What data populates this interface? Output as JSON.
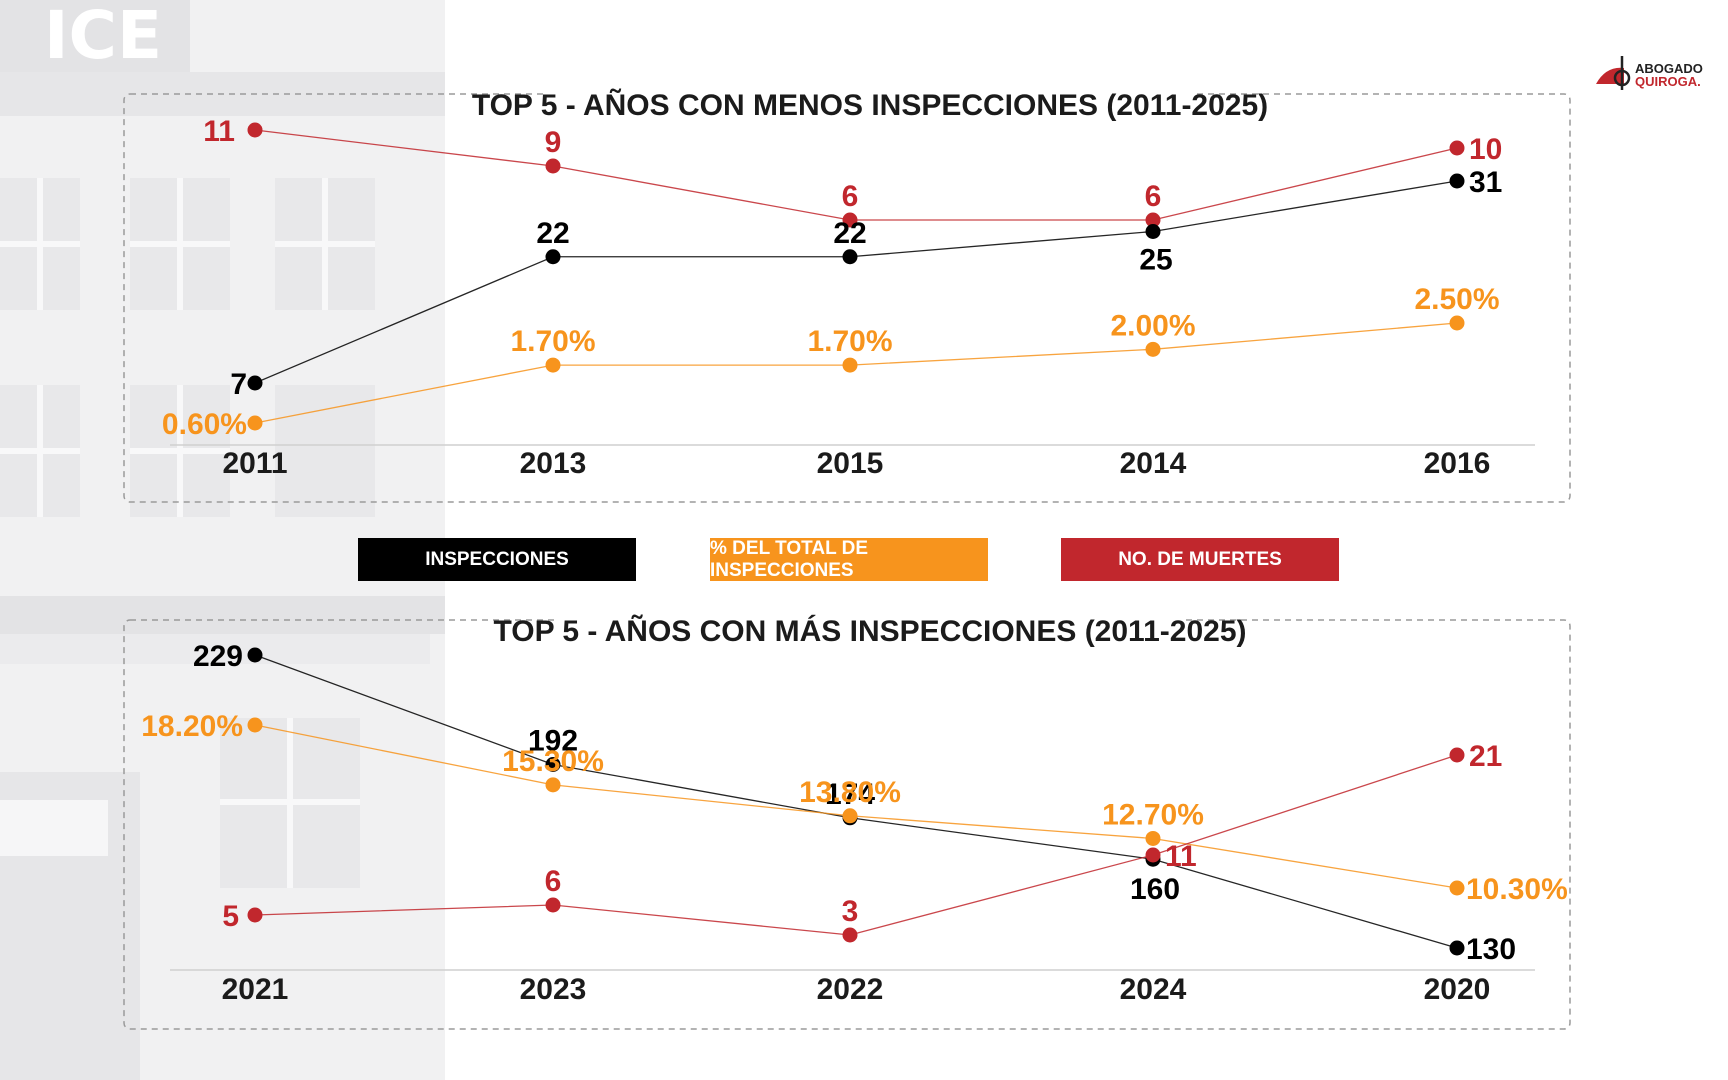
{
  "background": {
    "watermark_text": "ICE"
  },
  "logo": {
    "line1": "ABOGADO",
    "line2": "QUIROGA."
  },
  "legend": {
    "items": [
      {
        "label": "INSPECCIONES",
        "color": "#000000"
      },
      {
        "label": "% DEL TOTAL DE INSPECCIONES",
        "color": "#f7941d"
      },
      {
        "label": "NO. DE MUERTES",
        "color": "#c1272d"
      }
    ]
  },
  "colors": {
    "inspecciones": "#000000",
    "porcentaje": "#f7941d",
    "muertes": "#c1272d"
  },
  "chart_data": [
    {
      "type": "line",
      "title": "TOP 5 - AÑOS CON MENOS INSPECCIONES (2011-2025)",
      "categories": [
        "2011",
        "2013",
        "2015",
        "2014",
        "2016"
      ],
      "series": [
        {
          "name": "NO. DE MUERTES",
          "values": [
            11,
            9,
            6,
            6,
            10
          ],
          "labels": [
            "11",
            "9",
            "6",
            "6",
            "10"
          ]
        },
        {
          "name": "INSPECCIONES",
          "values": [
            7,
            22,
            22,
            25,
            31
          ],
          "labels": [
            "7",
            "22",
            "22",
            "25",
            "31"
          ]
        },
        {
          "name": "% DEL TOTAL DE INSPECCIONES",
          "values": [
            0.6,
            1.7,
            1.7,
            2.0,
            2.5
          ],
          "labels": [
            "0.60%",
            "1.70%",
            "1.70%",
            "2.00%",
            "2.50%"
          ]
        }
      ]
    },
    {
      "type": "line",
      "title": "TOP 5 - AÑOS CON MÁS INSPECCIONES (2011-2025)",
      "categories": [
        "2021",
        "2023",
        "2022",
        "2024",
        "2020"
      ],
      "series": [
        {
          "name": "INSPECCIONES",
          "values": [
            229,
            192,
            174,
            160,
            130
          ],
          "labels": [
            "229",
            "192",
            "174",
            "160",
            "130"
          ]
        },
        {
          "name": "% DEL TOTAL DE INSPECCIONES",
          "values": [
            18.2,
            15.3,
            13.8,
            12.7,
            10.3
          ],
          "labels": [
            "18.20%",
            "15.30%",
            "13.80%",
            "12.70%",
            "10.30%"
          ]
        },
        {
          "name": "NO. DE MUERTES",
          "values": [
            5,
            6,
            3,
            11,
            21
          ],
          "labels": [
            "5",
            "6",
            "3",
            "11",
            "21"
          ]
        }
      ]
    }
  ]
}
